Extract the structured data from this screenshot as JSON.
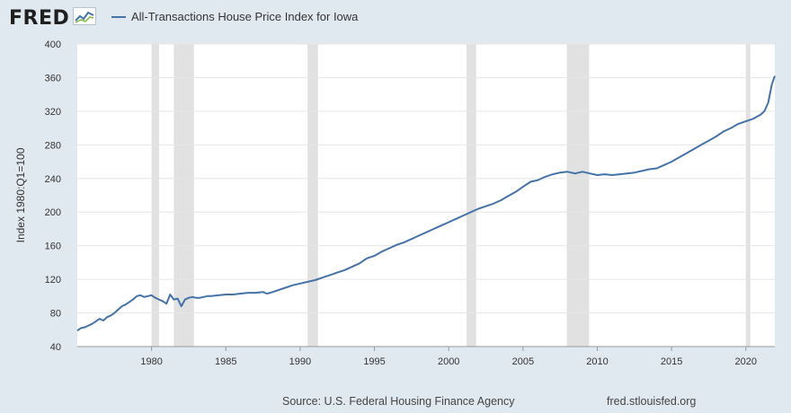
{
  "header": {
    "logo_text": "FRED",
    "logo_icon": "line-graph-icon",
    "legend_label": "All-Transactions House Price Index for Iowa"
  },
  "footer": {
    "source": "Source: U.S. Federal Housing Finance Agency",
    "link": "fred.stlouisfed.org"
  },
  "colors": {
    "background": "#e1e9f0",
    "plot_background": "#ffffff",
    "series": "#4572a7",
    "recession": "#e1e1e1",
    "grid": "#e6e6e6",
    "logo_accent": "#7dbb47"
  },
  "chart_data": {
    "type": "line",
    "title": "",
    "xlabel": "",
    "ylabel": "Index 1980:Q1=100",
    "xlim": [
      1975.0,
      2021.95
    ],
    "ylim": [
      40,
      400
    ],
    "grid": true,
    "y_ticks": [
      40,
      80,
      120,
      160,
      200,
      240,
      280,
      320,
      360,
      400
    ],
    "x_ticks": [
      1980,
      1985,
      1990,
      1995,
      2000,
      2005,
      2010,
      2015,
      2020
    ],
    "recessions": [
      [
        1980.0,
        1980.5
      ],
      [
        1981.5,
        1982.85
      ],
      [
        1990.5,
        1991.2
      ],
      [
        2001.2,
        2001.85
      ],
      [
        2007.95,
        2009.45
      ],
      [
        2020.0,
        2020.3
      ]
    ],
    "series": [
      {
        "name": "All-Transactions House Price Index for Iowa",
        "x": [
          1975.0,
          1975.25,
          1975.5,
          1975.75,
          1976.0,
          1976.25,
          1976.5,
          1976.75,
          1977.0,
          1977.25,
          1977.5,
          1977.75,
          1978.0,
          1978.25,
          1978.5,
          1978.75,
          1979.0,
          1979.25,
          1979.5,
          1979.75,
          1980.0,
          1980.25,
          1980.5,
          1980.75,
          1981.0,
          1981.25,
          1981.5,
          1981.75,
          1982.0,
          1982.25,
          1982.5,
          1982.75,
          1983.0,
          1983.25,
          1983.5,
          1983.75,
          1984.0,
          1984.5,
          1985.0,
          1985.5,
          1986.0,
          1986.5,
          1987.0,
          1987.5,
          1987.75,
          1988.0,
          1988.5,
          1989.0,
          1989.5,
          1990.0,
          1990.5,
          1991.0,
          1991.5,
          1992.0,
          1992.5,
          1993.0,
          1993.5,
          1994.0,
          1994.5,
          1995.0,
          1995.5,
          1996.0,
          1996.5,
          1997.0,
          1997.5,
          1998.0,
          1998.5,
          1999.0,
          1999.5,
          2000.0,
          2000.5,
          2001.0,
          2001.5,
          2002.0,
          2002.5,
          2003.0,
          2003.5,
          2004.0,
          2004.5,
          2005.0,
          2005.5,
          2006.0,
          2006.5,
          2007.0,
          2007.5,
          2008.0,
          2008.5,
          2009.0,
          2009.5,
          2010.0,
          2010.5,
          2011.0,
          2011.5,
          2012.0,
          2012.5,
          2013.0,
          2013.5,
          2014.0,
          2014.5,
          2015.0,
          2015.5,
          2016.0,
          2016.5,
          2017.0,
          2017.5,
          2018.0,
          2018.5,
          2019.0,
          2019.5,
          2020.0,
          2020.5,
          2021.0,
          2021.25,
          2021.5,
          2021.75,
          2021.95
        ],
        "values": [
          59,
          62,
          63,
          65,
          67,
          70,
          73,
          71,
          75,
          77,
          80,
          84,
          88,
          90,
          93,
          96,
          100,
          101,
          99,
          100,
          101,
          98,
          96,
          94,
          91,
          102,
          96,
          97,
          88,
          96,
          98,
          99,
          98,
          98,
          99,
          100,
          100,
          101,
          102,
          102,
          103,
          104,
          104,
          105,
          103,
          104,
          107,
          110,
          113,
          115,
          117,
          119,
          122,
          125,
          128,
          131,
          135,
          139,
          145,
          148,
          153,
          157,
          161,
          164,
          168,
          172,
          176,
          180,
          184,
          188,
          192,
          196,
          200,
          204,
          207,
          210,
          214,
          219,
          224,
          230,
          236,
          238,
          242,
          245,
          247,
          248,
          246,
          248,
          246,
          244,
          245,
          244,
          245,
          246,
          247,
          249,
          251,
          252,
          256,
          260,
          265,
          270,
          275,
          280,
          285,
          290,
          296,
          300,
          305,
          308,
          311,
          316,
          320,
          330,
          352,
          362
        ]
      }
    ]
  }
}
